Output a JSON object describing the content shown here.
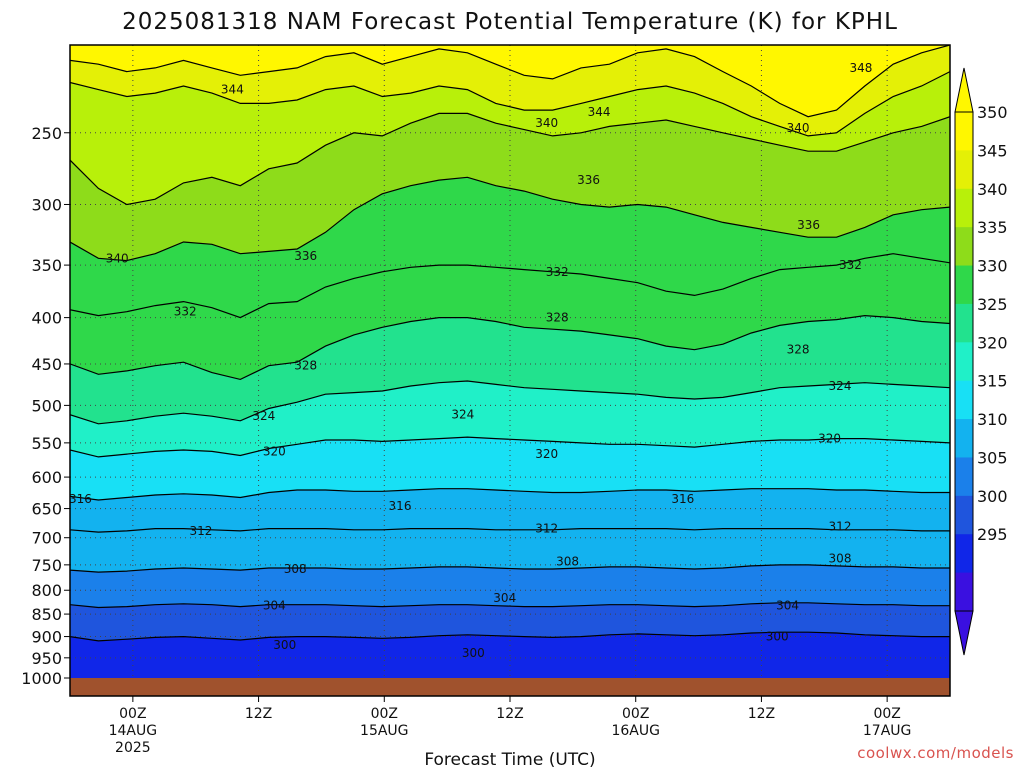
{
  "chart_data": {
    "type": "heatmap",
    "title": "2025081318 NAM Forecast Potential Temperature (K) for KPHL",
    "xlabel": "Forecast Time (UTC)",
    "ylabel": "",
    "watermark": "coolwx.com/models",
    "y_scale": "log-pressure (hPa), inverted",
    "ylim": [
      1000,
      200
    ],
    "yticks": [
      250,
      300,
      350,
      400,
      450,
      500,
      550,
      600,
      650,
      700,
      750,
      800,
      850,
      900,
      950,
      1000
    ],
    "x_ticks": [
      {
        "t": 6,
        "label": "00Z",
        "sub1": "14AUG",
        "sub2": "2025"
      },
      {
        "t": 18,
        "label": "12Z",
        "sub1": "",
        "sub2": ""
      },
      {
        "t": 30,
        "label": "00Z",
        "sub1": "15AUG",
        "sub2": ""
      },
      {
        "t": 42,
        "label": "12Z",
        "sub1": "",
        "sub2": ""
      },
      {
        "t": 54,
        "label": "00Z",
        "sub1": "16AUG",
        "sub2": ""
      },
      {
        "t": 66,
        "label": "12Z",
        "sub1": "",
        "sub2": ""
      },
      {
        "t": 78,
        "label": "00Z",
        "sub1": "17AUG",
        "sub2": ""
      }
    ],
    "xlim_forecast_hours": [
      0,
      84
    ],
    "grid": true,
    "colorbar": {
      "labels": [
        350,
        345,
        340,
        335,
        330,
        325,
        320,
        315,
        310,
        305,
        300,
        295
      ],
      "levels": [
        290,
        295,
        300,
        305,
        310,
        315,
        320,
        325,
        330,
        335,
        340,
        345,
        350,
        355
      ],
      "colors": [
        "#3a10e0",
        "#1026e8",
        "#1f55dd",
        "#1b80ea",
        "#13b2ef",
        "#18e0f5",
        "#20f0c8",
        "#22e28e",
        "#2fd84a",
        "#8edc1a",
        "#b8f00a",
        "#e4f006",
        "#fff700"
      ],
      "extend": "both"
    },
    "series": [
      {
        "level": 348,
        "p": [
          208,
          210,
          214,
          212,
          208,
          212,
          216,
          214,
          212,
          206,
          204,
          210,
          206,
          202,
          204,
          210,
          216,
          218,
          212,
          210,
          204,
          202,
          206,
          214,
          222,
          232,
          240,
          236,
          222,
          210,
          204,
          200
        ]
      },
      {
        "level": 344,
        "p": [
          220,
          224,
          228,
          226,
          222,
          226,
          232,
          232,
          230,
          224,
          222,
          228,
          226,
          222,
          224,
          232,
          236,
          236,
          232,
          228,
          224,
          222,
          226,
          232,
          240,
          246,
          252,
          250,
          238,
          228,
          222,
          214
        ]
      },
      {
        "level": 340,
        "p": [
          268,
          288,
          300,
          296,
          284,
          280,
          286,
          274,
          270,
          258,
          250,
          252,
          244,
          238,
          238,
          244,
          248,
          252,
          250,
          246,
          244,
          242,
          246,
          250,
          254,
          258,
          262,
          262,
          256,
          250,
          246,
          240
        ]
      },
      {
        "level": 336,
        "p": [
          330,
          344,
          346,
          340,
          330,
          332,
          340,
          338,
          336,
          322,
          304,
          292,
          286,
          282,
          280,
          286,
          290,
          296,
          300,
          302,
          300,
          302,
          308,
          314,
          318,
          322,
          326,
          326,
          318,
          308,
          304,
          302
        ]
      },
      {
        "level": 332,
        "p": [
          392,
          398,
          394,
          388,
          384,
          390,
          400,
          386,
          384,
          370,
          362,
          356,
          352,
          350,
          350,
          352,
          354,
          356,
          358,
          362,
          366,
          374,
          378,
          372,
          362,
          354,
          352,
          350,
          344,
          340,
          344,
          348
        ]
      },
      {
        "level": 328,
        "p": [
          450,
          462,
          458,
          452,
          448,
          460,
          468,
          452,
          448,
          430,
          418,
          410,
          404,
          400,
          400,
          404,
          410,
          412,
          414,
          418,
          422,
          430,
          434,
          428,
          416,
          408,
          404,
          402,
          398,
          400,
          404,
          406
        ]
      },
      {
        "level": 324,
        "p": [
          512,
          524,
          520,
          514,
          510,
          514,
          520,
          504,
          496,
          486,
          484,
          482,
          476,
          472,
          470,
          474,
          478,
          480,
          482,
          484,
          486,
          490,
          492,
          490,
          484,
          478,
          476,
          474,
          472,
          474,
          476,
          478
        ]
      },
      {
        "level": 320,
        "p": [
          560,
          570,
          566,
          562,
          560,
          562,
          568,
          558,
          552,
          546,
          546,
          548,
          546,
          544,
          542,
          544,
          546,
          548,
          550,
          552,
          552,
          554,
          556,
          552,
          548,
          546,
          546,
          544,
          544,
          546,
          548,
          550
        ]
      },
      {
        "level": 316,
        "p": [
          630,
          636,
          632,
          628,
          626,
          628,
          632,
          624,
          620,
          620,
          622,
          622,
          620,
          618,
          618,
          620,
          622,
          624,
          624,
          622,
          620,
          620,
          622,
          620,
          618,
          618,
          618,
          620,
          620,
          622,
          624,
          624
        ]
      },
      {
        "level": 312,
        "p": [
          686,
          690,
          688,
          684,
          684,
          686,
          688,
          684,
          684,
          684,
          686,
          686,
          684,
          684,
          684,
          686,
          686,
          686,
          684,
          684,
          684,
          684,
          686,
          684,
          684,
          684,
          684,
          686,
          686,
          686,
          688,
          688
        ]
      },
      {
        "level": 308,
        "p": [
          760,
          764,
          762,
          758,
          756,
          758,
          760,
          756,
          756,
          756,
          758,
          758,
          756,
          754,
          754,
          756,
          758,
          758,
          756,
          754,
          754,
          756,
          758,
          756,
          752,
          750,
          750,
          752,
          754,
          754,
          756,
          756
        ]
      },
      {
        "level": 304,
        "p": [
          830,
          836,
          834,
          830,
          828,
          830,
          834,
          830,
          830,
          830,
          832,
          834,
          832,
          830,
          830,
          832,
          834,
          834,
          832,
          830,
          830,
          832,
          834,
          832,
          828,
          826,
          826,
          828,
          830,
          830,
          832,
          832
        ]
      },
      {
        "level": 300,
        "p": [
          900,
          910,
          906,
          902,
          900,
          904,
          908,
          902,
          900,
          900,
          902,
          904,
          902,
          898,
          896,
          898,
          900,
          902,
          900,
          896,
          894,
          896,
          898,
          896,
          892,
          890,
          890,
          892,
          896,
          898,
          900,
          900
        ]
      }
    ],
    "contour_labels": [
      {
        "text": "348",
        "t": 75.5,
        "p": 212
      },
      {
        "text": "344",
        "t": 15.5,
        "p": 224
      },
      {
        "text": "344",
        "t": 50.5,
        "p": 237
      },
      {
        "text": "340",
        "t": 45.5,
        "p": 244
      },
      {
        "text": "340",
        "t": 69.5,
        "p": 247
      },
      {
        "text": "340",
        "t": 4.5,
        "p": 344
      },
      {
        "text": "336",
        "t": 49.5,
        "p": 282
      },
      {
        "text": "336",
        "t": 70.5,
        "p": 316
      },
      {
        "text": "336",
        "t": 22.5,
        "p": 342
      },
      {
        "text": "332",
        "t": 46.5,
        "p": 356
      },
      {
        "text": "332",
        "t": 74.5,
        "p": 350
      },
      {
        "text": "332",
        "t": 11.0,
        "p": 394
      },
      {
        "text": "328",
        "t": 46.5,
        "p": 400
      },
      {
        "text": "328",
        "t": 22.5,
        "p": 452
      },
      {
        "text": "328",
        "t": 69.5,
        "p": 434
      },
      {
        "text": "324",
        "t": 73.5,
        "p": 476
      },
      {
        "text": "324",
        "t": 18.5,
        "p": 514
      },
      {
        "text": "324",
        "t": 37.5,
        "p": 512
      },
      {
        "text": "320",
        "t": 72.5,
        "p": 544
      },
      {
        "text": "320",
        "t": 19.5,
        "p": 562
      },
      {
        "text": "320",
        "t": 45.5,
        "p": 566
      },
      {
        "text": "316",
        "t": 1.0,
        "p": 634
      },
      {
        "text": "316",
        "t": 31.5,
        "p": 646
      },
      {
        "text": "316",
        "t": 58.5,
        "p": 634
      },
      {
        "text": "312",
        "t": 12.5,
        "p": 688
      },
      {
        "text": "312",
        "t": 45.5,
        "p": 684
      },
      {
        "text": "312",
        "t": 73.5,
        "p": 680
      },
      {
        "text": "308",
        "t": 21.5,
        "p": 758
      },
      {
        "text": "308",
        "t": 47.5,
        "p": 744
      },
      {
        "text": "308",
        "t": 73.5,
        "p": 738
      },
      {
        "text": "304",
        "t": 19.5,
        "p": 832
      },
      {
        "text": "304",
        "t": 41.5,
        "p": 816
      },
      {
        "text": "304",
        "t": 68.5,
        "p": 832
      },
      {
        "text": "300",
        "t": 20.5,
        "p": 920
      },
      {
        "text": "300",
        "t": 38.5,
        "p": 938
      },
      {
        "text": "300",
        "t": 67.5,
        "p": 900
      }
    ]
  }
}
